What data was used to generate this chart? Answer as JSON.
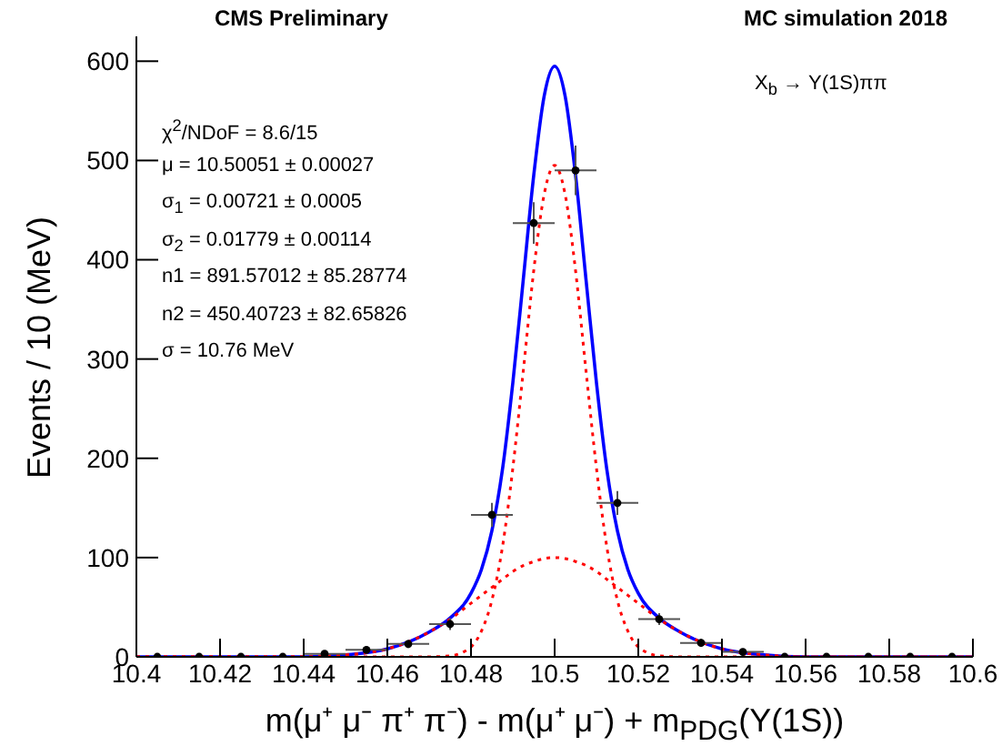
{
  "chart_data": {
    "type": "line",
    "title": "CMS Preliminary",
    "subtitle": "MC simulation 2018",
    "xlabel": "m(μ⁺ μ⁻ π⁺ π⁻) - m(μ⁺ μ⁻) + m$_{PDG}$(Υ(1S))",
    "ylabel": "Events / 10 (MeV)",
    "annotations": [
      "X$_{b}$ → Υ(1S)ππ",
      "χ$^{2}$/NDoF = 8.6/15",
      "μ = 10.50051 ± 0.00027",
      "σ$_{1}$ = 0.00721 ± 0.0005",
      "σ$_{2}$ = 0.01779 ± 0.00114",
      "n1 = 891.57012 ± 85.28774",
      "n2 = 450.40723 ± 82.65826",
      "σ = 10.76  MeV"
    ],
    "xlim": [
      10.4,
      10.6
    ],
    "xticks": [
      10.4,
      10.42,
      10.44,
      10.46,
      10.48,
      10.5,
      10.52,
      10.54,
      10.56,
      10.58,
      10.6
    ],
    "ylim": [
      0,
      625
    ],
    "yticks": [
      0,
      100,
      200,
      300,
      400,
      500,
      600
    ],
    "grid": false,
    "legend": false,
    "marker": "none",
    "series": [
      {
        "color": "#0000ff",
        "line_style": "solid",
        "x": [
          10.4,
          10.44,
          10.45,
          10.46,
          10.47,
          10.475,
          10.48,
          10.4825,
          10.485,
          10.4875,
          10.49,
          10.4925,
          10.495,
          10.4975,
          10.5,
          10.5025,
          10.505,
          10.5075,
          10.51,
          10.5125,
          10.515,
          10.5175,
          10.52,
          10.525,
          10.53,
          10.54,
          10.55,
          10.56,
          10.6
        ],
        "values": [
          0,
          0,
          2,
          8,
          25,
          39,
          64,
          88,
          127,
          188,
          276,
          380,
          485,
          565,
          595,
          565,
          485,
          380,
          276,
          188,
          127,
          88,
          64,
          39,
          25,
          8,
          2,
          0,
          0
        ]
      },
      {
        "color": "#ff0000",
        "line_style": "dotted",
        "x": [
          10.4,
          10.47,
          10.475,
          10.48,
          10.4825,
          10.485,
          10.4875,
          10.49,
          10.4925,
          10.495,
          10.4975,
          10.5,
          10.5025,
          10.505,
          10.5075,
          10.51,
          10.5125,
          10.515,
          10.5175,
          10.52,
          10.525,
          10.53,
          10.6
        ],
        "values": [
          0,
          0,
          1,
          10,
          26,
          57,
          110,
          190,
          288,
          389,
          466,
          495,
          466,
          389,
          288,
          190,
          110,
          57,
          26,
          10,
          1,
          0,
          0
        ]
      },
      {
        "color": "#ff0000",
        "line_style": "dotted",
        "x": [
          10.4,
          10.44,
          10.45,
          10.46,
          10.47,
          10.475,
          10.48,
          10.4825,
          10.485,
          10.4875,
          10.49,
          10.4925,
          10.495,
          10.4975,
          10.5,
          10.5025,
          10.505,
          10.5075,
          10.51,
          10.5125,
          10.515,
          10.5175,
          10.52,
          10.525,
          10.53,
          10.54,
          10.55,
          10.56,
          10.6
        ],
        "values": [
          0,
          0,
          2,
          8,
          25,
          38,
          54,
          62,
          70,
          78,
          86,
          92,
          96,
          99,
          100,
          99,
          96,
          92,
          86,
          78,
          70,
          62,
          54,
          38,
          25,
          8,
          2,
          0,
          0
        ]
      },
      {
        "type": "scatter",
        "color": "#000000",
        "marker": "circle",
        "x": [
          10.405,
          10.415,
          10.425,
          10.435,
          10.445,
          10.455,
          10.465,
          10.475,
          10.485,
          10.495,
          10.505,
          10.515,
          10.525,
          10.535,
          10.545,
          10.555,
          10.565,
          10.575,
          10.585,
          10.595
        ],
        "values": [
          0,
          0,
          0,
          0,
          3,
          7,
          13,
          33,
          143,
          437,
          490,
          155,
          38,
          14,
          5,
          0,
          0,
          0,
          0,
          0
        ],
        "errors": [
          null,
          null,
          null,
          null,
          2,
          3,
          4,
          6,
          12,
          21,
          25,
          12,
          6,
          4,
          2,
          null,
          null,
          null,
          null,
          null
        ],
        "xerrors": [
          0.005,
          0.005,
          0.005,
          0.005,
          0.005,
          0.005,
          0.005,
          0.005,
          0.005,
          0.005,
          0.005,
          0.005,
          0.005,
          0.005,
          0.005,
          0.005,
          0.005,
          0.005,
          0.005,
          0.005
        ]
      }
    ]
  }
}
